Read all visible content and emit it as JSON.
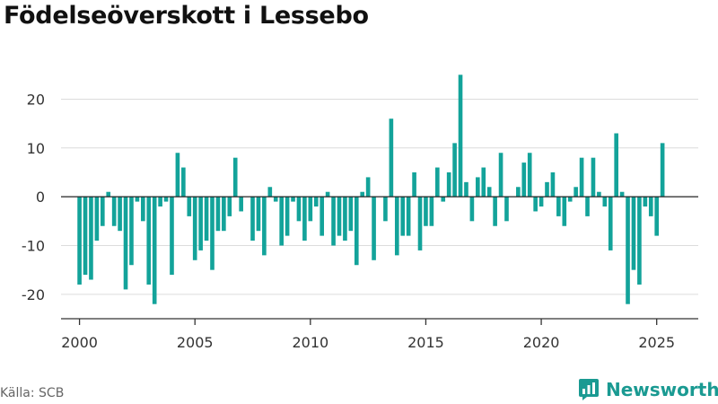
{
  "header": {
    "title": "Födelseöverskott i Lessebo"
  },
  "footer": {
    "source": "Källa: SCB",
    "brand": "Newsworthy"
  },
  "colors": {
    "bar": "#13a39a",
    "grid": "#dcdcdc",
    "zero": "#222222",
    "axis": "#333333",
    "brand": "#1a9a92"
  },
  "brand_icon": "newsworthy-logo-icon",
  "chart_data": {
    "type": "bar",
    "title": "Födelseöverskott i Lessebo",
    "xlabel": "",
    "ylabel": "",
    "ylim": [
      -25,
      28
    ],
    "xlim": [
      1999.2,
      2026.8
    ],
    "grid": true,
    "y_ticks": [
      20,
      10,
      0,
      -10,
      -20
    ],
    "x_ticks": [
      "2000",
      "2005",
      "2010",
      "2015",
      "2020",
      "2025"
    ],
    "quarters": [
      "2000Q1",
      "2000Q2",
      "2000Q3",
      "2000Q4",
      "2001Q1",
      "2001Q2",
      "2001Q3",
      "2001Q4",
      "2002Q1",
      "2002Q2",
      "2002Q3",
      "2002Q4",
      "2003Q1",
      "2003Q2",
      "2003Q3",
      "2003Q4",
      "2004Q1",
      "2004Q2",
      "2004Q3",
      "2004Q4",
      "2005Q1",
      "2005Q2",
      "2005Q3",
      "2005Q4",
      "2006Q1",
      "2006Q2",
      "2006Q3",
      "2006Q4",
      "2007Q1",
      "2007Q2",
      "2007Q3",
      "2007Q4",
      "2008Q1",
      "2008Q2",
      "2008Q3",
      "2008Q4",
      "2009Q1",
      "2009Q2",
      "2009Q3",
      "2009Q4",
      "2010Q1",
      "2010Q2",
      "2010Q3",
      "2010Q4",
      "2011Q1",
      "2011Q2",
      "2011Q3",
      "2011Q4",
      "2012Q1",
      "2012Q2",
      "2012Q3",
      "2012Q4",
      "2013Q1",
      "2013Q2",
      "2013Q3",
      "2013Q4",
      "2014Q1",
      "2014Q2",
      "2014Q3",
      "2014Q4",
      "2015Q1",
      "2015Q2",
      "2015Q3",
      "2015Q4",
      "2016Q1",
      "2016Q2",
      "2016Q3",
      "2016Q4",
      "2017Q1",
      "2017Q2",
      "2017Q3",
      "2017Q4",
      "2018Q1",
      "2018Q2",
      "2018Q3",
      "2018Q4",
      "2019Q1",
      "2019Q2",
      "2019Q3",
      "2019Q4",
      "2020Q1",
      "2020Q2",
      "2020Q3",
      "2020Q4",
      "2021Q1",
      "2021Q2",
      "2021Q3",
      "2021Q4",
      "2022Q1",
      "2022Q2",
      "2022Q3",
      "2022Q4",
      "2023Q1",
      "2023Q2",
      "2023Q3",
      "2023Q4",
      "2024Q1",
      "2024Q2",
      "2024Q3",
      "2024Q4",
      "2025Q1",
      "2025Q2"
    ],
    "values": [
      -18,
      -16,
      -17,
      -9,
      -6,
      1,
      -6,
      -7,
      -19,
      -14,
      -1,
      -5,
      -18,
      -22,
      -2,
      -1,
      -16,
      9,
      6,
      -4,
      -13,
      -11,
      -9,
      -15,
      -7,
      -7,
      -4,
      8,
      -3,
      0,
      -9,
      -7,
      -12,
      2,
      -1,
      -10,
      -8,
      -1,
      -5,
      -9,
      -5,
      -2,
      -8,
      1,
      -10,
      -8,
      -9,
      -7,
      -14,
      1,
      4,
      -13,
      0,
      -5,
      16,
      -12,
      -8,
      -8,
      5,
      -11,
      -6,
      -6,
      6,
      -1,
      5,
      11,
      25,
      3,
      -5,
      4,
      6,
      2,
      -6,
      9,
      -5,
      0,
      2,
      7,
      9,
      -3,
      -2,
      3,
      5,
      -4,
      -6,
      -1,
      2,
      8,
      -4,
      8,
      1,
      -2,
      -11,
      13,
      1,
      -22,
      -15,
      -18,
      -2,
      -4,
      -8,
      11
    ]
  }
}
